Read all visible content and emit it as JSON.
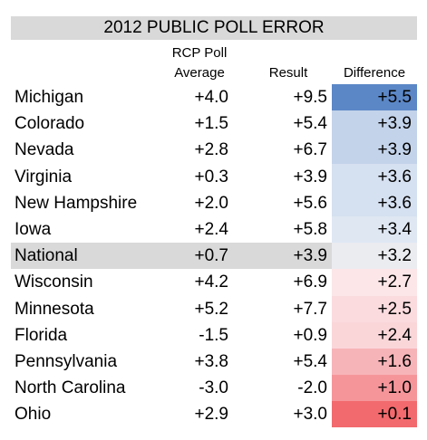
{
  "title": "2012 PUBLIC POLL ERROR",
  "headers": {
    "rcp_line1": "RCP Poll",
    "rcp_line2": "Average",
    "result": "Result",
    "difference": "Difference"
  },
  "colors": {
    "title_bg": "#d9d9d9",
    "highlight_row_bg": "#d9d9d9",
    "scale_blue_strong": "#5b87c6",
    "scale_blue_light": "#dae4f2",
    "scale_red_light": "#fbe2e4",
    "scale_red_strong": "#f26a6d"
  },
  "chart_data": {
    "type": "table",
    "title": "2012 PUBLIC POLL ERROR",
    "columns": [
      "RCP Poll Average",
      "Result",
      "Difference"
    ],
    "rows": [
      {
        "name": "Michigan",
        "rcp": "+4.0",
        "result": "+9.5",
        "diff": "+5.5",
        "diff_value": 5.5,
        "color": "#5b87c6"
      },
      {
        "name": "Colorado",
        "rcp": "+1.5",
        "result": "+5.4",
        "diff": "+3.9",
        "diff_value": 3.9,
        "color": "#c3d3ea"
      },
      {
        "name": "Nevada",
        "rcp": "+2.8",
        "result": "+6.7",
        "diff": "+3.9",
        "diff_value": 3.9,
        "color": "#c3d3ea"
      },
      {
        "name": "Virginia",
        "rcp": "+0.3",
        "result": "+3.9",
        "diff": "+3.6",
        "diff_value": 3.6,
        "color": "#d5e0f0"
      },
      {
        "name": "New Hampshire",
        "rcp": "+2.0",
        "result": "+5.6",
        "diff": "+3.6",
        "diff_value": 3.6,
        "color": "#d5e0f0"
      },
      {
        "name": "Iowa",
        "rcp": "+2.4",
        "result": "+5.8",
        "diff": "+3.4",
        "diff_value": 3.4,
        "color": "#dfe7f3"
      },
      {
        "name": "National",
        "rcp": "+0.7",
        "result": "+3.9",
        "diff": "+3.2",
        "diff_value": 3.2,
        "color": "#ebecf0",
        "highlight": true
      },
      {
        "name": "Wisconsin",
        "rcp": "+4.2",
        "result": "+6.9",
        "diff": "+2.7",
        "diff_value": 2.7,
        "color": "#fce6e8"
      },
      {
        "name": "Minnesota",
        "rcp": "+5.2",
        "result": "+7.7",
        "diff": "+2.5",
        "diff_value": 2.5,
        "color": "#fbdbde"
      },
      {
        "name": "Florida",
        "rcp": "-1.5",
        "result": "+0.9",
        "diff": "+2.4",
        "diff_value": 2.4,
        "color": "#fad6d9"
      },
      {
        "name": "Pennsylvania",
        "rcp": "+3.8",
        "result": "+5.4",
        "diff": "+1.6",
        "diff_value": 1.6,
        "color": "#f7b4b8"
      },
      {
        "name": "North Carolina",
        "rcp": "-3.0",
        "result": "-2.0",
        "diff": "+1.0",
        "diff_value": 1.0,
        "color": "#f5959a"
      },
      {
        "name": "Ohio",
        "rcp": "+2.9",
        "result": "+3.0",
        "diff": "+0.1",
        "diff_value": 0.1,
        "color": "#f26a6d"
      }
    ]
  }
}
